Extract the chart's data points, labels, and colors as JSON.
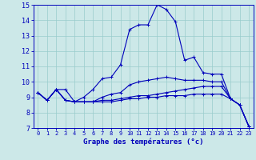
{
  "xlabel": "Graphe des températures (°c)",
  "background_color": "#cce8e8",
  "line_color": "#0000bb",
  "grid_color": "#99cccc",
  "xlim": [
    -0.5,
    23.5
  ],
  "ylim": [
    7,
    15
  ],
  "xticks": [
    0,
    1,
    2,
    3,
    4,
    5,
    6,
    7,
    8,
    9,
    10,
    11,
    12,
    13,
    14,
    15,
    16,
    17,
    18,
    19,
    20,
    21,
    22,
    23
  ],
  "yticks": [
    7,
    8,
    9,
    10,
    11,
    12,
    13,
    14,
    15
  ],
  "series": [
    [
      9.3,
      8.8,
      9.5,
      8.8,
      8.7,
      9.0,
      9.5,
      10.2,
      10.3,
      11.1,
      13.4,
      13.7,
      13.7,
      15.0,
      14.7,
      13.9,
      11.4,
      11.6,
      10.6,
      10.5,
      10.5,
      8.9,
      8.5,
      7.1
    ],
    [
      9.3,
      8.8,
      9.5,
      9.5,
      8.7,
      8.7,
      8.7,
      9.0,
      9.2,
      9.3,
      9.8,
      10.0,
      10.1,
      10.2,
      10.3,
      10.2,
      10.1,
      10.1,
      10.1,
      10.0,
      10.0,
      8.9,
      8.5,
      7.1
    ],
    [
      9.3,
      8.8,
      9.5,
      8.8,
      8.7,
      8.7,
      8.7,
      8.8,
      8.8,
      8.9,
      9.0,
      9.1,
      9.1,
      9.2,
      9.3,
      9.4,
      9.5,
      9.6,
      9.7,
      9.7,
      9.7,
      8.9,
      8.5,
      7.1
    ],
    [
      9.3,
      8.8,
      9.5,
      8.8,
      8.7,
      8.7,
      8.7,
      8.7,
      8.7,
      8.8,
      8.9,
      8.9,
      9.0,
      9.0,
      9.1,
      9.1,
      9.1,
      9.2,
      9.2,
      9.2,
      9.2,
      8.9,
      8.5,
      7.1
    ]
  ]
}
